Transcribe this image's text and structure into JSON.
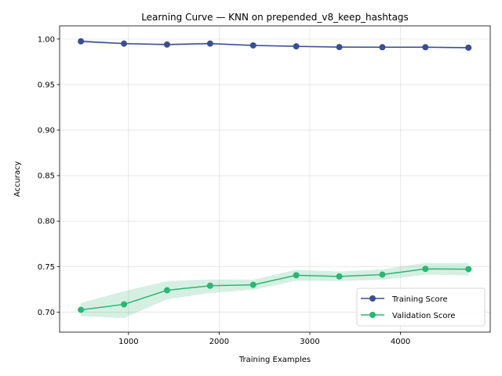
{
  "chart_data": {
    "type": "line",
    "title": "Learning Curve — KNN on prepended_v8_keep_hashtags",
    "xlabel": "Training Examples",
    "ylabel": "Accuracy",
    "xlim": [
      240,
      4990
    ],
    "ylim": [
      0.678,
      1.0145
    ],
    "xticks": [
      1000,
      2000,
      3000,
      4000
    ],
    "xtick_labels": [
      "1000",
      "2000",
      "3000",
      "4000"
    ],
    "yticks": [
      0.7,
      0.75,
      0.8,
      0.85,
      0.9,
      0.95,
      1.0
    ],
    "ytick_labels": [
      "0.70",
      "0.75",
      "0.80",
      "0.85",
      "0.90",
      "0.95",
      "1.00"
    ],
    "grid": true,
    "legend_position": "lower-right",
    "x": [
      475,
      950,
      1425,
      1900,
      2375,
      2850,
      3325,
      3800,
      4275,
      4750
    ],
    "series": [
      {
        "name": "Training Score",
        "color": "#3b4f8f",
        "values": [
          0.9975,
          0.995,
          0.994,
          0.995,
          0.993,
          0.992,
          0.9912,
          0.991,
          0.991,
          0.9905
        ],
        "band_lower": [
          0.996,
          0.9942,
          0.993,
          0.994,
          0.9922,
          0.9912,
          0.9905,
          0.9902,
          0.9902,
          0.9895
        ],
        "band_upper": [
          0.999,
          0.9958,
          0.995,
          0.996,
          0.9938,
          0.9928,
          0.992,
          0.9918,
          0.9918,
          0.9915
        ]
      },
      {
        "name": "Validation Score",
        "color": "#2bb673",
        "values": [
          0.7025,
          0.7085,
          0.724,
          0.729,
          0.73,
          0.7405,
          0.7392,
          0.7412,
          0.7475,
          0.7472
        ],
        "band_lower": [
          0.6955,
          0.6935,
          0.714,
          0.721,
          0.7245,
          0.7345,
          0.734,
          0.7355,
          0.741,
          0.7405
        ],
        "band_upper": [
          0.71,
          0.723,
          0.734,
          0.736,
          0.7355,
          0.7465,
          0.7445,
          0.747,
          0.754,
          0.754
        ]
      }
    ]
  }
}
